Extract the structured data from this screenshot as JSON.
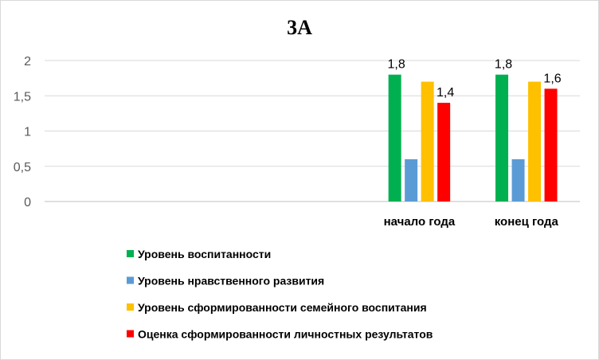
{
  "chart_data": {
    "type": "bar",
    "title": "3А",
    "categories": [
      "",
      "",
      "",
      "начало года",
      "конец года"
    ],
    "y_ticks": [
      "0",
      "0,5",
      "1",
      "1,5",
      "2"
    ],
    "ylim": [
      0,
      2
    ],
    "grid": true,
    "legend_position": "bottom",
    "series": [
      {
        "name": "Уровень воспитанности",
        "color": "#00b050",
        "values": [
          null,
          null,
          null,
          1.8,
          1.8
        ],
        "labels": [
          "",
          "",
          "",
          "1,8",
          "1,8"
        ]
      },
      {
        "name": "Уровень нравственного развития",
        "color": "#5b9bd5",
        "values": [
          null,
          null,
          null,
          0.6,
          0.6
        ],
        "labels": [
          "",
          "",
          "",
          "",
          ""
        ]
      },
      {
        "name": "Уровень сформированности семейного воспитания",
        "color": "#ffc000",
        "values": [
          null,
          null,
          null,
          1.7,
          1.7
        ],
        "labels": [
          "",
          "",
          "",
          "",
          ""
        ]
      },
      {
        "name": "Оценка сформированности личностных результатов",
        "color": "#ff0000",
        "values": [
          null,
          null,
          null,
          1.4,
          1.6
        ],
        "labels": [
          "",
          "",
          "",
          "1,4",
          "1,6"
        ]
      }
    ]
  }
}
